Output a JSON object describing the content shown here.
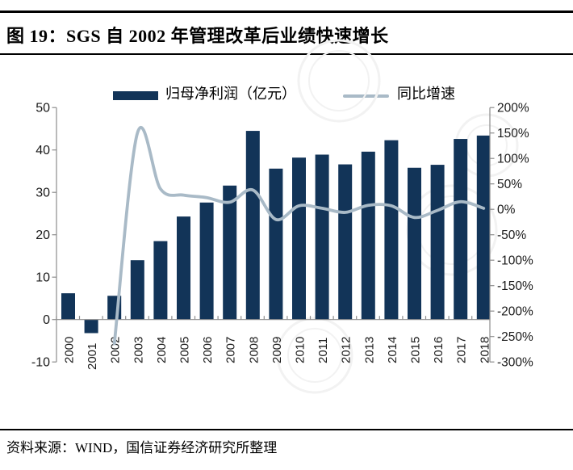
{
  "header": {
    "title": "图 19：SGS 自 2002 年管理改革后业绩快速增长"
  },
  "legend": {
    "bar_label": "归母净利润（亿元）",
    "line_label": "同比增速"
  },
  "footer": {
    "source": "资料来源：WIND，国信证券经济研究所整理"
  },
  "colors": {
    "bar": "#123458",
    "line": "#a9bac7",
    "axis": "#8c8c8c",
    "tick_text": "#1a1a1a",
    "rule": "#000000",
    "watermark": "#f2f2f2"
  },
  "chart_data": {
    "type": "combo-bar-line",
    "title": "图 19：SGS 自 2002 年管理改革后业绩快速增长",
    "categories": [
      "2000",
      "2001",
      "2002",
      "2003",
      "2004",
      "2005",
      "2006",
      "2007",
      "2008",
      "2009",
      "2010",
      "2011",
      "2012",
      "2013",
      "2014",
      "2015",
      "2016",
      "2017",
      "2018"
    ],
    "series": [
      {
        "name": "归母净利润（亿元）",
        "type": "bar",
        "axis": "left",
        "values": [
          6.2,
          -3.2,
          5.6,
          14.0,
          18.5,
          24.3,
          27.6,
          31.6,
          44.5,
          35.6,
          38.2,
          38.9,
          36.6,
          39.6,
          42.3,
          35.8,
          36.5,
          42.6,
          43.4
        ]
      },
      {
        "name": "同比增速",
        "type": "line",
        "axis": "right",
        "unit": "%",
        "values": [
          null,
          null,
          -264,
          150,
          40,
          28,
          23,
          14,
          38,
          -20,
          7,
          2,
          -6,
          8,
          7,
          -16,
          -2,
          15,
          2
        ]
      }
    ],
    "left_axis": {
      "min": -10,
      "max": 50,
      "step": 10,
      "tick_labels": [
        "50",
        "40",
        "30",
        "20",
        "10",
        "0",
        "-10"
      ]
    },
    "right_axis": {
      "min": -300,
      "max": 200,
      "step": 50,
      "unit": "%",
      "tick_labels": [
        "200%",
        "150%",
        "100%",
        "50%",
        "0%",
        "-50%",
        "-100%",
        "-150%",
        "-200%",
        "-250%",
        "-300%"
      ]
    },
    "grid": false,
    "legend_position": "top",
    "source": "资料来源：WIND，国信证券经济研究所整理"
  }
}
